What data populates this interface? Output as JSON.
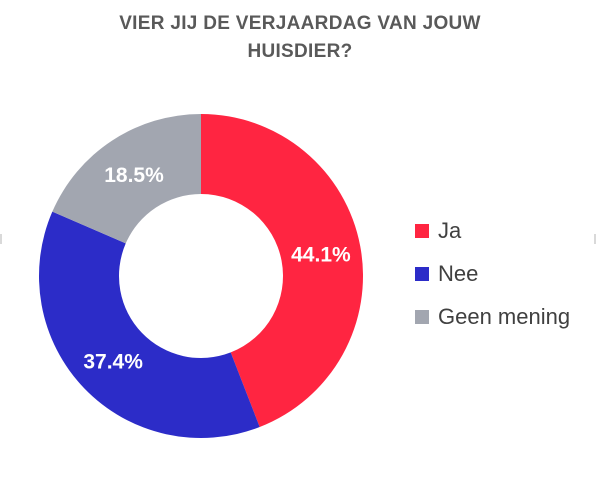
{
  "chart_data": {
    "type": "donut",
    "title_lines": [
      "VIER JIJ DE VERJAARDAG VAN JOUW",
      "HUISDIER?"
    ],
    "series": [
      {
        "name": "Ja",
        "value": 44.1,
        "label": "44.1%",
        "color": "#FF2541"
      },
      {
        "name": "Nee",
        "value": 37.4,
        "label": "37.4%",
        "color": "#2C2CC8"
      },
      {
        "name": "Geen mening",
        "value": 18.5,
        "label": "18.5%",
        "color": "#A2A6B0"
      }
    ],
    "start_angle_deg": 0,
    "direction": "clockwise",
    "legend_placement": "right"
  }
}
